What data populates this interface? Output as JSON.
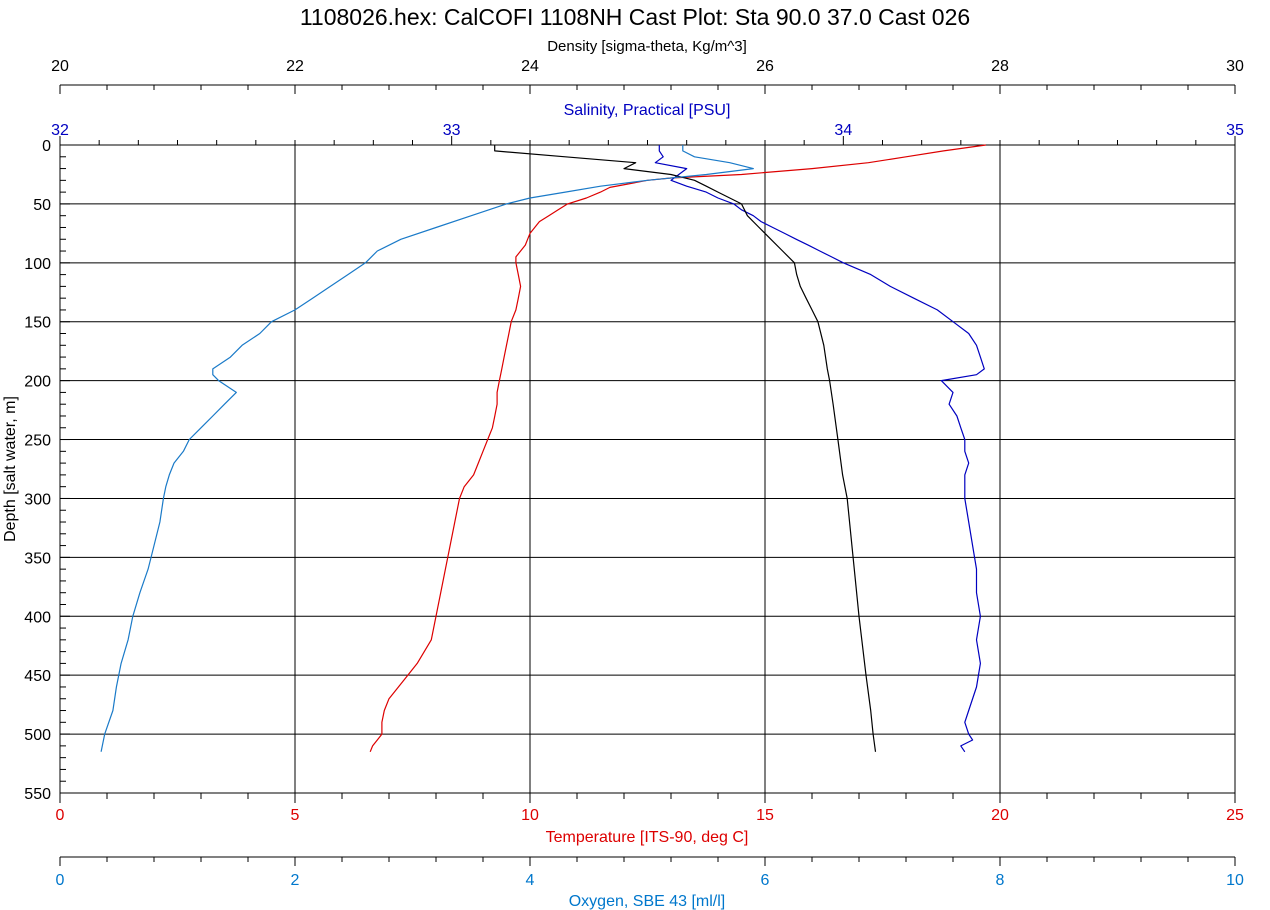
{
  "chart_data": {
    "type": "line",
    "title": "1108026.hex: CalCOFI 1108NH Cast Plot: Sta 90.0 37.0 Cast 026",
    "grid": true,
    "y_axis": {
      "label": "Depth [salt water, m]",
      "range": [
        0,
        550
      ],
      "inverted": true,
      "ticks": [
        "0",
        "50",
        "100",
        "150",
        "200",
        "250",
        "300",
        "350",
        "400",
        "450",
        "500",
        "550"
      ]
    },
    "x_axes": [
      {
        "id": "density",
        "label": "Density [sigma-theta, Kg/m^3]",
        "position": "top",
        "range": [
          20,
          30
        ],
        "color": "#000000",
        "ticks": [
          "20",
          "22",
          "24",
          "26",
          "28",
          "30"
        ]
      },
      {
        "id": "salinity",
        "label": "Salinity, Practical [PSU]",
        "position": "top-inner",
        "range": [
          32,
          35
        ],
        "color": "#0000c0",
        "ticks": [
          "32",
          "33",
          "34",
          "35"
        ]
      },
      {
        "id": "temperature",
        "label": "Temperature [ITS-90, deg C]",
        "position": "bottom",
        "range": [
          0,
          25
        ],
        "color": "#dd0000",
        "ticks": [
          "0",
          "5",
          "10",
          "15",
          "20",
          "25"
        ]
      },
      {
        "id": "oxygen",
        "label": "Oxygen, SBE 43 [ml/l]",
        "position": "bottom-outer",
        "range": [
          0,
          10
        ],
        "color": "#0077cc",
        "ticks": [
          "0",
          "2",
          "4",
          "6",
          "8",
          "10"
        ]
      }
    ],
    "series": [
      {
        "axis": "temperature",
        "color": "#dd0000",
        "depth": [
          0,
          5,
          10,
          15,
          20,
          25,
          28,
          30,
          33,
          36,
          40,
          45,
          50,
          55,
          60,
          65,
          70,
          75,
          80,
          85,
          90,
          95,
          100,
          110,
          120,
          130,
          140,
          150,
          160,
          170,
          180,
          190,
          200,
          210,
          220,
          230,
          240,
          250,
          260,
          270,
          280,
          290,
          300,
          320,
          340,
          360,
          380,
          400,
          420,
          440,
          450,
          460,
          470,
          480,
          490,
          500,
          505,
          510,
          515
        ],
        "values": [
          19.7,
          18.8,
          18.0,
          17.2,
          16.0,
          14.5,
          13.0,
          12.5,
          12.1,
          11.7,
          11.5,
          11.2,
          10.8,
          10.6,
          10.4,
          10.2,
          10.1,
          10.0,
          9.95,
          9.9,
          9.8,
          9.7,
          9.7,
          9.75,
          9.8,
          9.75,
          9.7,
          9.6,
          9.55,
          9.5,
          9.45,
          9.4,
          9.35,
          9.3,
          9.3,
          9.25,
          9.2,
          9.1,
          9.0,
          8.9,
          8.8,
          8.6,
          8.5,
          8.4,
          8.3,
          8.2,
          8.1,
          8.0,
          7.9,
          7.6,
          7.4,
          7.2,
          7.0,
          6.9,
          6.85,
          6.85,
          6.75,
          6.65,
          6.6
        ]
      },
      {
        "axis": "salinity",
        "color": "#0000c0",
        "depth": [
          0,
          5,
          10,
          15,
          20,
          25,
          30,
          35,
          40,
          45,
          50,
          55,
          60,
          65,
          70,
          75,
          80,
          85,
          90,
          95,
          100,
          110,
          120,
          130,
          140,
          150,
          160,
          170,
          180,
          190,
          195,
          200,
          210,
          220,
          230,
          240,
          250,
          260,
          270,
          280,
          290,
          300,
          320,
          340,
          360,
          380,
          400,
          420,
          440,
          460,
          480,
          490,
          500,
          505,
          510,
          515
        ],
        "values": [
          33.53,
          33.53,
          33.54,
          33.52,
          33.6,
          33.58,
          33.56,
          33.6,
          33.65,
          33.68,
          33.72,
          33.74,
          33.77,
          33.79,
          33.82,
          33.85,
          33.88,
          33.91,
          33.94,
          33.97,
          34.0,
          34.07,
          34.12,
          34.18,
          34.24,
          34.28,
          34.32,
          34.34,
          34.35,
          34.36,
          34.34,
          34.25,
          34.28,
          34.27,
          34.29,
          34.3,
          34.31,
          34.31,
          34.32,
          34.31,
          34.31,
          34.31,
          34.32,
          34.33,
          34.34,
          34.34,
          34.35,
          34.34,
          34.35,
          34.34,
          34.32,
          34.31,
          34.32,
          34.33,
          34.3,
          34.31
        ]
      },
      {
        "axis": "density",
        "color": "#000000",
        "depth": [
          0,
          5,
          10,
          15,
          20,
          25,
          30,
          35,
          40,
          50,
          60,
          70,
          80,
          90,
          100,
          110,
          120,
          130,
          140,
          150,
          170,
          190,
          200,
          220,
          250,
          280,
          300,
          350,
          400,
          450,
          480,
          500,
          515
        ],
        "values": [
          23.7,
          23.7,
          24.3,
          24.9,
          24.8,
          25.2,
          25.4,
          25.5,
          25.6,
          25.8,
          25.85,
          25.95,
          26.05,
          26.15,
          26.25,
          26.27,
          26.3,
          26.35,
          26.4,
          26.45,
          26.5,
          26.53,
          26.55,
          26.58,
          26.62,
          26.66,
          26.7,
          26.75,
          26.8,
          26.86,
          26.9,
          26.92,
          26.94
        ]
      },
      {
        "axis": "oxygen",
        "color": "#1a7ac8",
        "depth": [
          0,
          5,
          10,
          15,
          20,
          25,
          30,
          35,
          40,
          45,
          50,
          60,
          70,
          80,
          90,
          100,
          110,
          120,
          130,
          140,
          150,
          160,
          170,
          180,
          190,
          195,
          200,
          210,
          220,
          230,
          240,
          250,
          260,
          270,
          280,
          290,
          300,
          320,
          340,
          360,
          380,
          400,
          420,
          440,
          460,
          480,
          500,
          510,
          515
        ],
        "values": [
          5.3,
          5.3,
          5.4,
          5.7,
          5.9,
          5.5,
          5.0,
          4.6,
          4.3,
          4.0,
          3.8,
          3.5,
          3.2,
          2.9,
          2.7,
          2.6,
          2.45,
          2.3,
          2.15,
          2.0,
          1.8,
          1.7,
          1.55,
          1.45,
          1.3,
          1.3,
          1.35,
          1.5,
          1.4,
          1.3,
          1.2,
          1.1,
          1.05,
          0.97,
          0.93,
          0.9,
          0.88,
          0.85,
          0.8,
          0.75,
          0.68,
          0.62,
          0.58,
          0.52,
          0.48,
          0.45,
          0.38,
          0.36,
          0.35
        ]
      }
    ]
  }
}
